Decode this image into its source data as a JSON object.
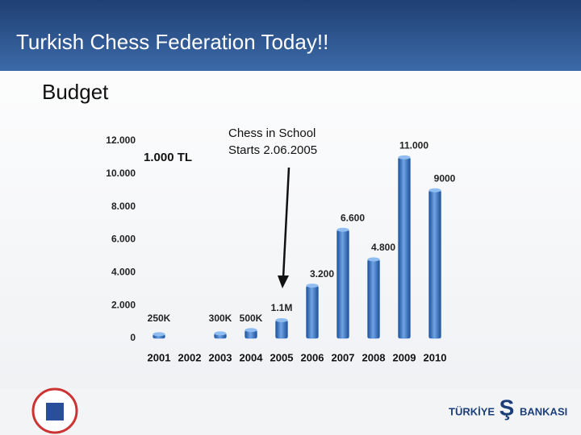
{
  "title": "Turkish Chess Federation Today!!",
  "chart_data": {
    "type": "bar",
    "title": "Budget",
    "unit_note": "1.000 TL",
    "annotation": [
      "Chess in School",
      "Starts 2.06.2005"
    ],
    "categories": [
      "2001",
      "2002",
      "2003",
      "2004",
      "2005",
      "2006",
      "2007",
      "2008",
      "2009",
      "2010"
    ],
    "values": [
      250,
      null,
      300,
      500,
      1100,
      3200,
      6600,
      4800,
      11000,
      9000
    ],
    "value_labels": [
      "250K",
      null,
      "300K",
      "500K",
      "1.1M",
      "3.200",
      "6.600",
      "4.800",
      "11.000",
      "9000"
    ],
    "color": "#3b7bd0",
    "ylim": [
      0,
      12000
    ],
    "yticks": [
      0,
      {
        "value": 2000,
        "label": "2.000"
      },
      {
        "value": 4000,
        "label": "4.000"
      },
      {
        "value": 6000,
        "label": "6.000"
      },
      {
        "value": 8000,
        "label": "8.000"
      },
      {
        "value": 10000,
        "label": "10.000"
      },
      {
        "value": 12000,
        "label": "12.000"
      }
    ],
    "grid": false
  },
  "footer": {
    "bank_left": "TÜRKİYE",
    "bank_right": "BANKASI"
  }
}
